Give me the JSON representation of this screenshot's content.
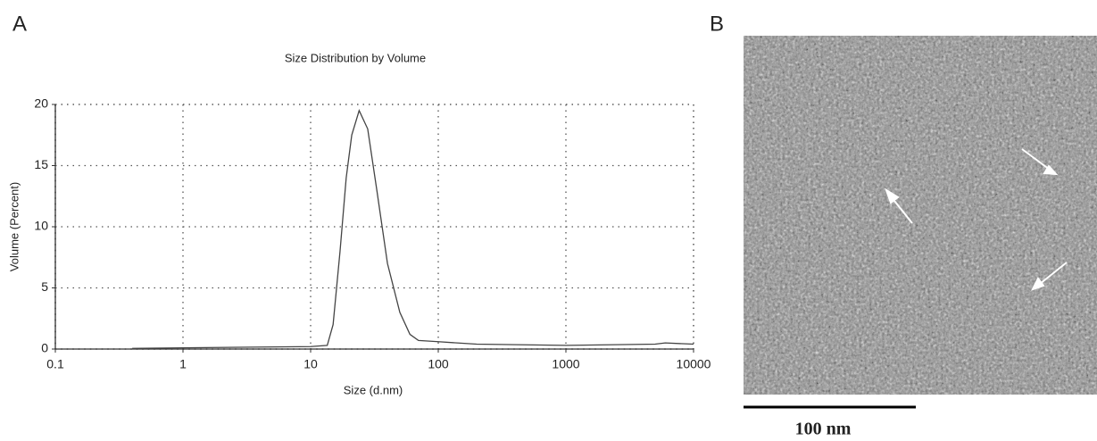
{
  "chart_data": {
    "type": "line",
    "title": "Size Distribution by Volume",
    "x_label": "Size (d.nm)",
    "y_label": "Volume (Percent)",
    "x": [
      0.4,
      1,
      10,
      13.5,
      15,
      17,
      19,
      21,
      24,
      28,
      33,
      40,
      50,
      60,
      70,
      100,
      200,
      1000,
      5000,
      6000,
      10000
    ],
    "values": [
      0.05,
      0.1,
      0.2,
      0.3,
      2,
      8,
      14,
      17.5,
      19.5,
      18,
      13,
      7,
      3,
      1.2,
      0.7,
      0.6,
      0.4,
      0.3,
      0.4,
      0.5,
      0.4
    ],
    "color": "#444444",
    "xlog": true,
    "grid": true,
    "xlim": [
      0.1,
      10000
    ],
    "xticks": [
      0.1,
      1,
      10,
      100,
      1000,
      10000
    ],
    "ylim": [
      0,
      20
    ],
    "yticks": [
      0,
      5,
      10,
      15,
      20
    ]
  },
  "panels": {
    "a_label": "A",
    "b_label": "B",
    "scale_bar_label": "100 nm"
  }
}
